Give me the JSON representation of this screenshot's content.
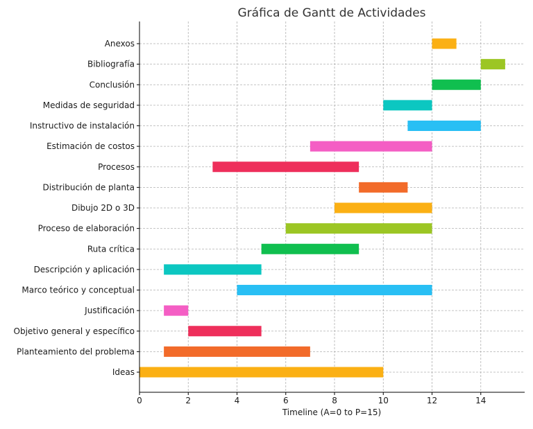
{
  "chart_data": {
    "type": "bar",
    "orientation": "horizontal",
    "subtype": "gantt",
    "title": "Gráfica de Gantt de Actividades",
    "xlabel": "Timeline (A=0 to P=15)",
    "ylabel": "",
    "xlim": [
      0,
      15.8
    ],
    "xticks": [
      0,
      2,
      4,
      6,
      8,
      10,
      12,
      14
    ],
    "grid": true,
    "tasks": [
      {
        "name": "Ideas",
        "start": 0,
        "end": 10,
        "color": "#fbb014"
      },
      {
        "name": "Planteamiento del problema",
        "start": 1,
        "end": 7,
        "color": "#f26b2a"
      },
      {
        "name": "Objetivo general y específico",
        "start": 2,
        "end": 5,
        "color": "#ee2f5b"
      },
      {
        "name": "Justificación",
        "start": 1,
        "end": 2,
        "color": "#f45ec4"
      },
      {
        "name": "Marco teórico y conceptual",
        "start": 4,
        "end": 12,
        "color": "#29bff4"
      },
      {
        "name": "Descripción y aplicación",
        "start": 1,
        "end": 5,
        "color": "#0cc7c1"
      },
      {
        "name": "Ruta crítica",
        "start": 5,
        "end": 9,
        "color": "#10bf4f"
      },
      {
        "name": "Proceso de elaboración",
        "start": 6,
        "end": 12,
        "color": "#9cc624"
      },
      {
        "name": "Dibujo 2D o 3D",
        "start": 8,
        "end": 12,
        "color": "#fbb014"
      },
      {
        "name": "Distribución de planta",
        "start": 9,
        "end": 11,
        "color": "#f26b2a"
      },
      {
        "name": "Procesos",
        "start": 3,
        "end": 9,
        "color": "#ee2f5b"
      },
      {
        "name": "Estimación de costos",
        "start": 7,
        "end": 12,
        "color": "#f45ec4"
      },
      {
        "name": "Instructivo de instalación",
        "start": 11,
        "end": 14,
        "color": "#29bff4"
      },
      {
        "name": "Medidas de seguridad",
        "start": 10,
        "end": 12,
        "color": "#0cc7c1"
      },
      {
        "name": "Conclusión",
        "start": 12,
        "end": 14,
        "color": "#10bf4f"
      },
      {
        "name": "Bibliografía",
        "start": 14,
        "end": 15,
        "color": "#9cc624"
      },
      {
        "name": "Anexos",
        "start": 12,
        "end": 13,
        "color": "#fbb014"
      }
    ]
  }
}
